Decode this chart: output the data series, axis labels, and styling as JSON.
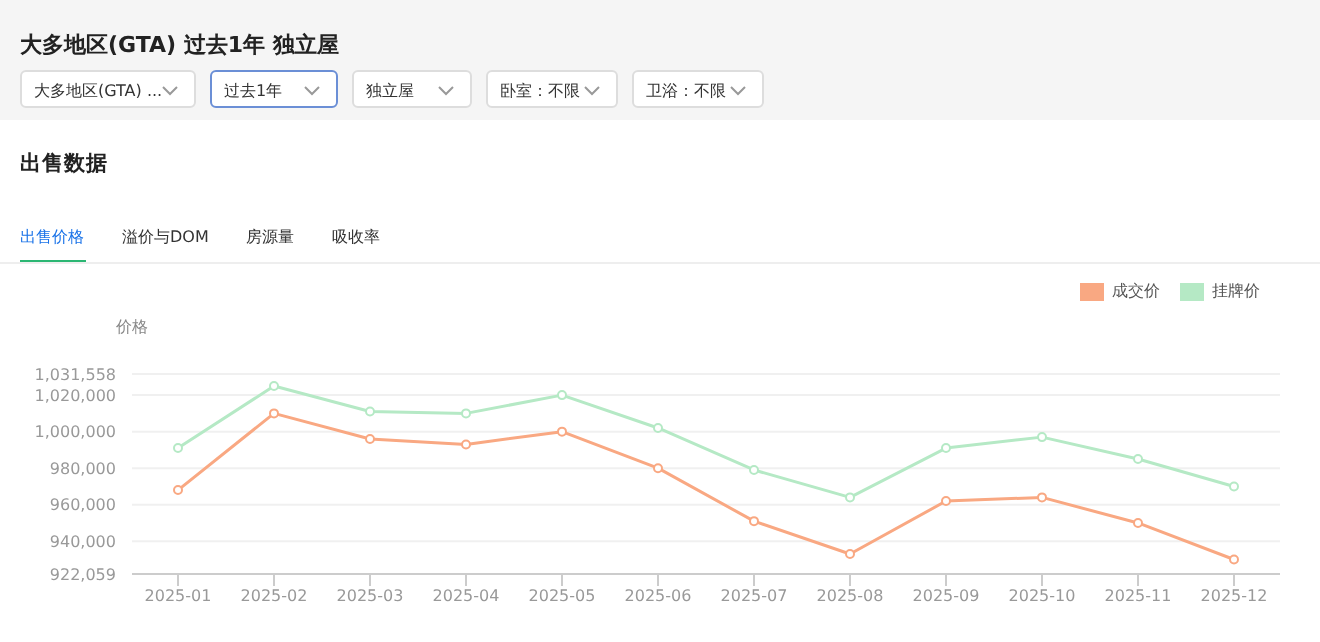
{
  "chart_data": {
    "type": "line",
    "title": "大多地区(GTA) 过去1年 独立屋",
    "subtitle": "出售数据",
    "ylabel": "价格",
    "annotations": [
      "大多地区(GTA) ...",
      "过去1年",
      "独立屋",
      "卧室：不限",
      "卫浴：不限",
      "出售价格",
      "溢价与DOM",
      "房源量",
      "吸收率"
    ],
    "categories": [
      "2025-01",
      "2025-02",
      "2025-03",
      "2025-04",
      "2025-05",
      "2025-06",
      "2025-07",
      "2025-08",
      "2025-09",
      "2025-10",
      "2025-11",
      "2025-12"
    ],
    "series": [
      {
        "name": "成交价",
        "color": "#f9a882",
        "values": [
          968000,
          1010000,
          996000,
          993000,
          1000000,
          980000,
          951000,
          933000,
          962000,
          964000,
          950000,
          930000
        ]
      },
      {
        "name": "挂牌价",
        "color": "#b5e9c5",
        "values": [
          991000,
          1025000,
          1011000,
          1010000,
          1020000,
          1002000,
          979000,
          964000,
          991000,
          997000,
          985000,
          970000
        ]
      }
    ],
    "ylim": [
      922059,
      1031558
    ],
    "yticks": [
      {
        "value": 922059,
        "label": "922,059"
      },
      {
        "value": 940000,
        "label": "940,000"
      },
      {
        "value": 960000,
        "label": "960,000"
      },
      {
        "value": 980000,
        "label": "980,000"
      },
      {
        "value": 1000000,
        "label": "1,000,000"
      },
      {
        "value": 1020000,
        "label": "1,020,000"
      },
      {
        "value": 1031558,
        "label": "1,031,558"
      }
    ],
    "grid": "y",
    "legend": "top right",
    "marker": "circle",
    "line_style": "solid"
  }
}
